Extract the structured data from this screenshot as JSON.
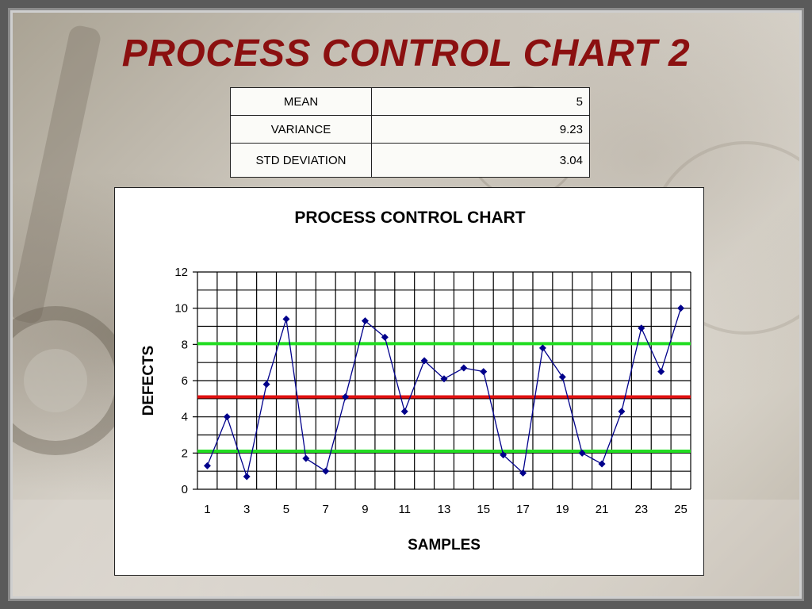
{
  "slide": {
    "title": "PROCESS CONTROL CHART 2"
  },
  "stats": [
    {
      "label": "MEAN",
      "value": "5"
    },
    {
      "label": "VARIANCE",
      "value": "9.23"
    },
    {
      "label": "STD DEVIATION",
      "value": "3.04"
    }
  ],
  "chart_data": {
    "type": "line",
    "title": "PROCESS CONTROL CHART",
    "xlabel": "SAMPLES",
    "ylabel": "DEFECTS",
    "x": [
      1,
      2,
      3,
      4,
      5,
      6,
      7,
      8,
      9,
      10,
      11,
      12,
      13,
      14,
      15,
      16,
      17,
      18,
      19,
      20,
      21,
      22,
      23,
      24,
      25
    ],
    "series": [
      {
        "values": [
          1.3,
          4.0,
          0.7,
          5.8,
          9.4,
          1.7,
          1.0,
          5.1,
          9.3,
          8.4,
          4.3,
          7.1,
          6.1,
          6.7,
          6.5,
          1.9,
          0.9,
          7.8,
          6.2,
          2.0,
          1.4,
          4.3,
          8.9,
          6.5,
          10.0
        ],
        "color": "#00008b"
      }
    ],
    "reference_lines": [
      {
        "value": 8.04,
        "color": "#22dd22"
      },
      {
        "value": 5.1,
        "color": "#e01010"
      },
      {
        "value": 2.1,
        "color": "#22dd22"
      }
    ],
    "ylim": [
      0,
      12
    ],
    "yticks": [
      0,
      2,
      4,
      6,
      8,
      10,
      12
    ],
    "xticks": [
      1,
      3,
      5,
      7,
      9,
      11,
      13,
      15,
      17,
      19,
      21,
      23,
      25
    ],
    "grid": true,
    "legend": "none"
  }
}
